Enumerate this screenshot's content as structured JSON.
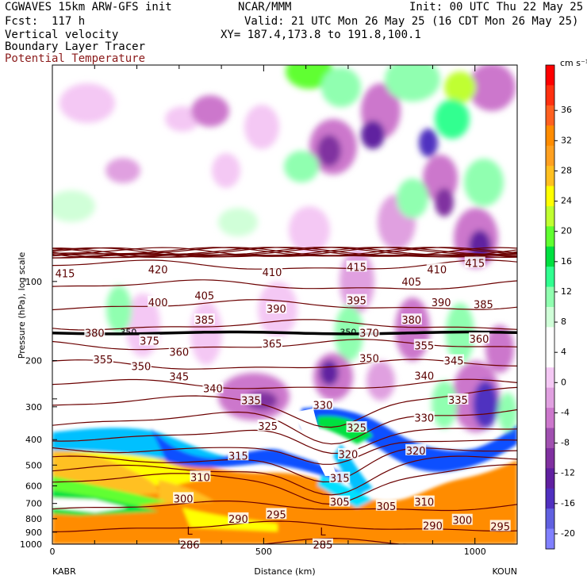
{
  "header": {
    "line1_left": "CGWAVES 15km ARW-GFS init",
    "line1_center": "NCAR/MMM",
    "line1_right": "Init: 00 UTC Thu 22 May 25",
    "line2_left": "Fcst:  117 h",
    "line2_right": "Valid: 21 UTC Mon 26 May 25 (16 CDT Mon 26 May 25)",
    "line3_left": "Vertical velocity",
    "line3_right": "XY= 187.4,173.8 to 191.8,100.1",
    "line4_left": "Boundary Layer Tracer",
    "line5_left": "Potential Temperature"
  },
  "chart_data": {
    "type": "heatmap",
    "fields": [
      "Vertical velocity",
      "Boundary Layer Tracer",
      "Potential Temperature"
    ],
    "xlabel": "Distance (km)",
    "ylabel": "Pressure (hPa), log scale",
    "x_ticks": [
      0,
      500,
      1000
    ],
    "xlim": [
      0,
      1100
    ],
    "y_ticks": [
      100,
      200,
      300,
      400,
      500,
      600,
      700,
      800,
      900,
      1000
    ],
    "ylim": [
      1000,
      15
    ],
    "y_scale": "log",
    "endpoints": {
      "left": "KABR",
      "right": "KOUN"
    },
    "colorbar": {
      "unit": "cm s⁻¹",
      "tick_labels": [
        "36",
        "32",
        "28",
        "24",
        "20",
        "16",
        "12",
        "8",
        "4",
        "0",
        "-4",
        "-8",
        "-12",
        "-16",
        "-20"
      ],
      "colors": [
        "#ff0000",
        "#ff3010",
        "#ff6020",
        "#ff8c00",
        "#ffa020",
        "#ffc020",
        "#ffff00",
        "#c0ff30",
        "#60ff30",
        "#00e040",
        "#30ff90",
        "#90ffb0",
        "#d0ffd8",
        "#ffffff",
        "#ffffff",
        "#f4c8f4",
        "#e0a0e0",
        "#cc77cc",
        "#a050b0",
        "#8030a0",
        "#6020a0",
        "#5030c0",
        "#6060e0",
        "#8080ff"
      ]
    },
    "theta_labels": [
      {
        "v": "415",
        "x": 30,
        "p": 93
      },
      {
        "v": "420",
        "x": 250,
        "p": 90
      },
      {
        "v": "410",
        "x": 520,
        "p": 92
      },
      {
        "v": "415",
        "x": 720,
        "p": 88
      },
      {
        "v": "410",
        "x": 910,
        "p": 90
      },
      {
        "v": "415",
        "x": 1000,
        "p": 85
      },
      {
        "v": "405",
        "x": 360,
        "p": 113
      },
      {
        "v": "405",
        "x": 850,
        "p": 100
      },
      {
        "v": "400",
        "x": 250,
        "p": 120
      },
      {
        "v": "395",
        "x": 720,
        "p": 118
      },
      {
        "v": "390",
        "x": 530,
        "p": 127
      },
      {
        "v": "390",
        "x": 920,
        "p": 120
      },
      {
        "v": "385",
        "x": 360,
        "p": 140
      },
      {
        "v": "385",
        "x": 1020,
        "p": 122
      },
      {
        "v": "380",
        "x": 850,
        "p": 140
      },
      {
        "v": "380",
        "x": 100,
        "p": 157
      },
      {
        "v": "375",
        "x": 230,
        "p": 168
      },
      {
        "v": "370",
        "x": 750,
        "p": 157
      },
      {
        "v": "360",
        "x": 1010,
        "p": 165
      },
      {
        "v": "360",
        "x": 300,
        "p": 185
      },
      {
        "v": "365",
        "x": 520,
        "p": 172
      },
      {
        "v": "355",
        "x": 880,
        "p": 175
      },
      {
        "v": "355",
        "x": 120,
        "p": 198
      },
      {
        "v": "350",
        "x": 750,
        "p": 196
      },
      {
        "v": "350",
        "x": 210,
        "p": 210
      },
      {
        "v": "345",
        "x": 950,
        "p": 200
      },
      {
        "v": "345",
        "x": 300,
        "p": 230
      },
      {
        "v": "340",
        "x": 380,
        "p": 255
      },
      {
        "v": "340",
        "x": 880,
        "p": 228
      },
      {
        "v": "335",
        "x": 470,
        "p": 283
      },
      {
        "v": "335",
        "x": 960,
        "p": 282
      },
      {
        "v": "330",
        "x": 640,
        "p": 295
      },
      {
        "v": "330",
        "x": 880,
        "p": 330
      },
      {
        "v": "325",
        "x": 510,
        "p": 355
      },
      {
        "v": "325",
        "x": 720,
        "p": 360
      },
      {
        "v": "320",
        "x": 700,
        "p": 455
      },
      {
        "v": "320",
        "x": 860,
        "p": 440
      },
      {
        "v": "315",
        "x": 440,
        "p": 460
      },
      {
        "v": "315",
        "x": 680,
        "p": 560
      },
      {
        "v": "310",
        "x": 350,
        "p": 555
      },
      {
        "v": "310",
        "x": 880,
        "p": 690
      },
      {
        "v": "305",
        "x": 680,
        "p": 690
      },
      {
        "v": "305",
        "x": 790,
        "p": 715
      },
      {
        "v": "300",
        "x": 310,
        "p": 670
      },
      {
        "v": "300",
        "x": 970,
        "p": 810
      },
      {
        "v": "295",
        "x": 530,
        "p": 770
      },
      {
        "v": "295",
        "x": 1060,
        "p": 855
      },
      {
        "v": "290",
        "x": 440,
        "p": 800
      },
      {
        "v": "290",
        "x": 900,
        "p": 850
      },
      {
        "v": "286",
        "x": 325,
        "p": 1005
      },
      {
        "v": "285",
        "x": 640,
        "p": 1005
      }
    ],
    "low_labels": [
      {
        "v": "L",
        "x": 325,
        "p": 890
      },
      {
        "v": "L",
        "x": 640,
        "p": 895
      }
    ],
    "inline_labels": [
      {
        "v": "350",
        "x": 180,
        "p": 157
      },
      {
        "v": "350",
        "x": 700,
        "p": 157
      }
    ]
  }
}
